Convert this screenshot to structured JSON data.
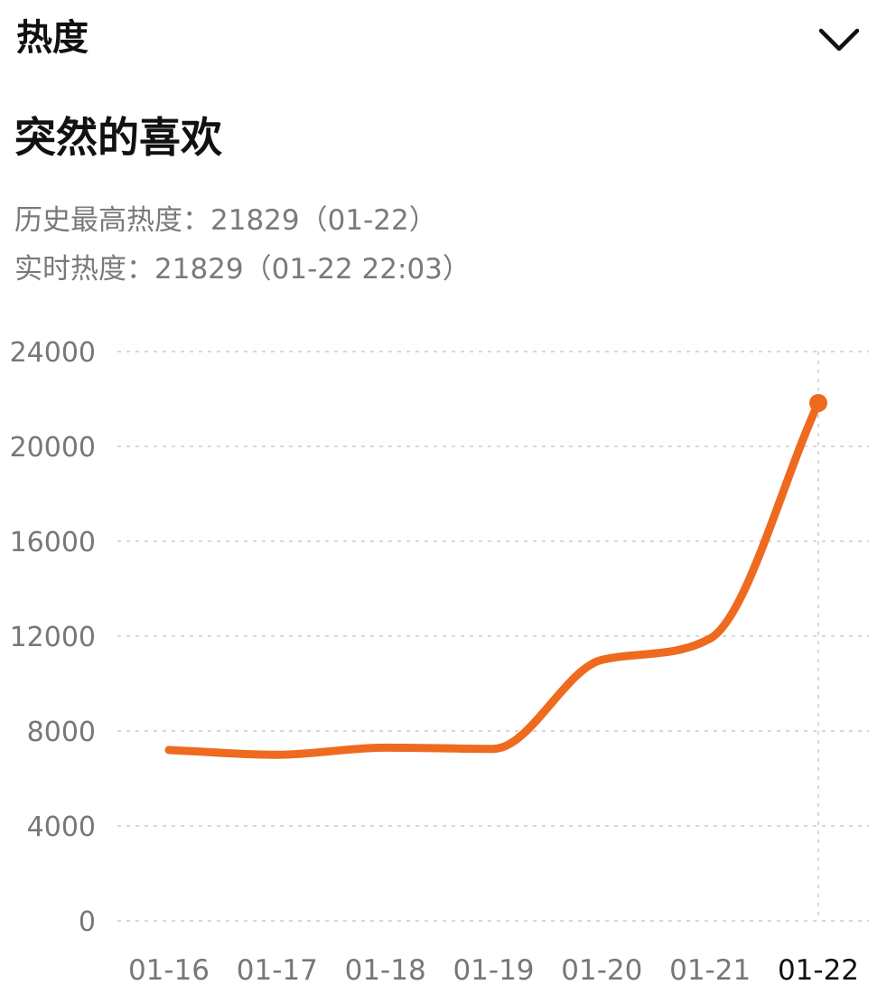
{
  "header": {
    "title": "热度",
    "toggle_icon": "chevron-down-icon"
  },
  "topic": {
    "title": "突然的喜欢"
  },
  "stats": {
    "max_label": "历史最高热度：",
    "max_value": "21829",
    "max_date": "（01-22）",
    "current_label": "实时热度：",
    "current_value": "21829",
    "current_time": "（01-22 22:03）"
  },
  "chart_data": {
    "type": "line",
    "title": "",
    "xlabel": "",
    "ylabel": "",
    "categories": [
      "01-16",
      "01-17",
      "01-18",
      "01-19",
      "01-20",
      "01-21",
      "01-22"
    ],
    "series": [
      {
        "values": [
          7200,
          7000,
          7300,
          7250,
          11000,
          11900,
          21829
        ]
      }
    ],
    "ylim": [
      0,
      24000
    ],
    "yticks": [
      0,
      4000,
      8000,
      12000,
      16000,
      20000,
      24000
    ],
    "grid": true,
    "highlight_category": "01-22",
    "colors": {
      "line": "#ee6a1f",
      "grid": "#d8d8d8",
      "tick_label": "#777777",
      "highlight_label": "#111111"
    }
  }
}
